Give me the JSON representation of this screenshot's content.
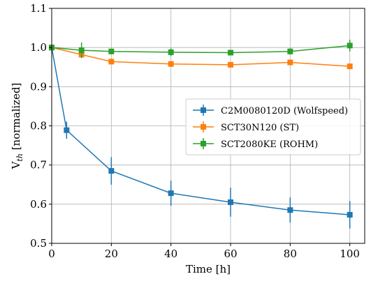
{
  "chart_data": {
    "type": "line",
    "xlabel": "Time [h]",
    "ylabel": "V",
    "ylabel_sub": "th",
    "ylabel_suffix": " [normalized]",
    "xlim": [
      0,
      105
    ],
    "ylim": [
      0.5,
      1.1
    ],
    "xticks": [
      0,
      20,
      40,
      60,
      80,
      100
    ],
    "yticks": [
      0.5,
      0.6,
      0.7,
      0.8,
      0.9,
      1.0,
      1.1
    ],
    "xtick_labels": [
      "0",
      "20",
      "40",
      "60",
      "80",
      "100"
    ],
    "ytick_labels": [
      "0.5",
      "0.6",
      "0.7",
      "0.8",
      "0.9",
      "1.0",
      "1.1"
    ],
    "grid": true,
    "legend_position": "center-right",
    "series": [
      {
        "name": "C2M0080120D (Wolfspeed)",
        "color": "#1f77b4",
        "x": [
          0,
          5,
          20,
          40,
          60,
          80,
          100
        ],
        "y": [
          1.0,
          0.789,
          0.685,
          0.628,
          0.605,
          0.585,
          0.573
        ],
        "yerr": [
          0.0,
          0.022,
          0.035,
          0.032,
          0.037,
          0.032,
          0.035
        ]
      },
      {
        "name": "SCT30N120 (ST)",
        "color": "#ff7f0e",
        "x": [
          0,
          10,
          20,
          40,
          60,
          80,
          100
        ],
        "y": [
          1.0,
          0.982,
          0.964,
          0.958,
          0.956,
          0.962,
          0.952
        ],
        "yerr": [
          0.0,
          0.0,
          0.0,
          0.0,
          0.0,
          0.0,
          0.0
        ]
      },
      {
        "name": "SCT2080KE (ROHM)",
        "color": "#2ca02c",
        "x": [
          0,
          10,
          20,
          40,
          60,
          80,
          100
        ],
        "y": [
          1.0,
          0.993,
          0.99,
          0.988,
          0.987,
          0.99,
          1.005
        ],
        "yerr": [
          0.0,
          0.02,
          0.007,
          0.01,
          0.005,
          0.008,
          0.015
        ]
      }
    ]
  }
}
